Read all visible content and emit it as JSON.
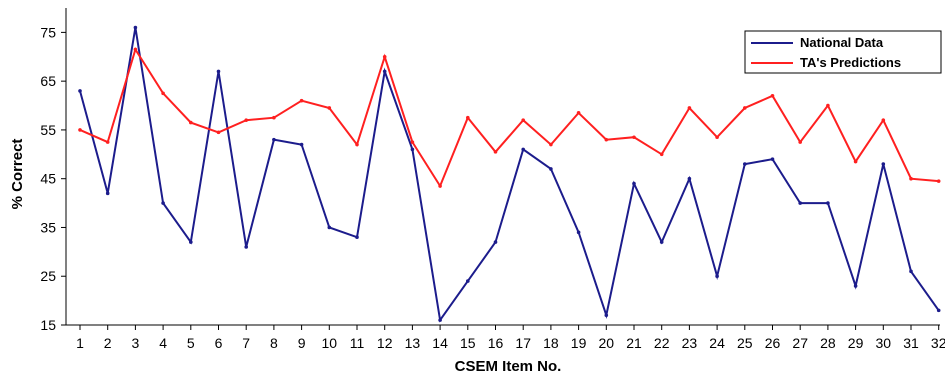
{
  "chart_data": {
    "type": "line",
    "title": "",
    "xlabel": "CSEM  Item  No.",
    "ylabel": "%  Correct",
    "categories": [
      "1",
      "2",
      "3",
      "4",
      "5",
      "6",
      "7",
      "8",
      "9",
      "10",
      "11",
      "12",
      "13",
      "14",
      "15",
      "16",
      "17",
      "18",
      "19",
      "20",
      "21",
      "22",
      "23",
      "24",
      "25",
      "26",
      "27",
      "28",
      "29",
      "30",
      "31",
      "32"
    ],
    "ylim": [
      15,
      80
    ],
    "yticks": [
      15,
      25,
      35,
      45,
      55,
      65,
      75
    ],
    "grid": false,
    "legend_position": "top-right",
    "series": [
      {
        "name": "National Data",
        "color": "#1c1c8c",
        "values": [
          63,
          42,
          76,
          40,
          32,
          67,
          31,
          53,
          52,
          35,
          33,
          67,
          51,
          16,
          24,
          32,
          51,
          47,
          34,
          17,
          44,
          32,
          45,
          25,
          48,
          49,
          40,
          40,
          23,
          48,
          26,
          18
        ]
      },
      {
        "name": "TA's Predictions",
        "color": "#ff2020",
        "values": [
          55,
          52.5,
          71.5,
          62.5,
          56.5,
          54.5,
          57,
          57.5,
          61,
          59.5,
          52,
          70,
          52.5,
          43.5,
          57.5,
          50.5,
          57,
          52,
          58.5,
          53,
          53.5,
          50,
          59.5,
          53.5,
          59.5,
          62,
          52.5,
          60,
          48.5,
          57,
          45,
          44.5
        ]
      }
    ]
  }
}
